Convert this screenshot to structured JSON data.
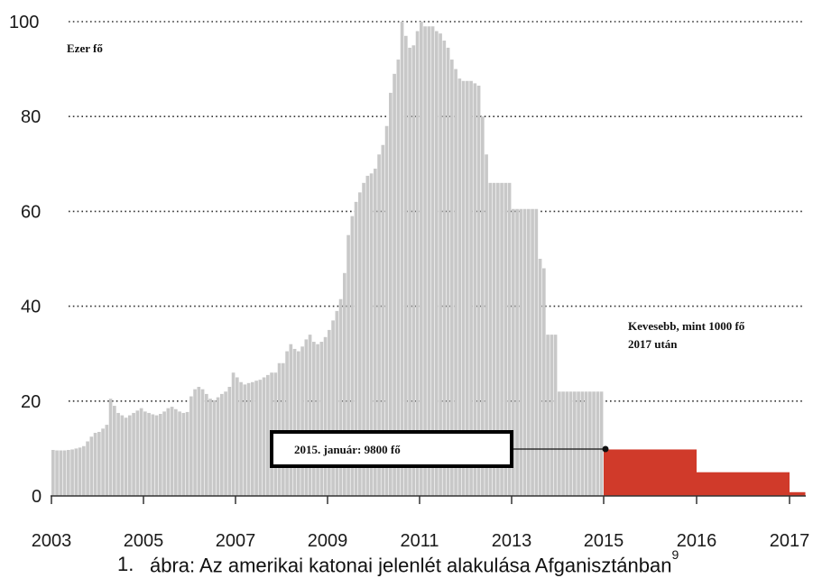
{
  "caption": {
    "number": "1.",
    "text": "ábra: Az amerikai katonai jelenlét alakulása Afganisztánban",
    "footnote": "9"
  },
  "chart_data": {
    "type": "bar",
    "ylabel": "Ezer fő",
    "ylim": [
      0,
      100
    ],
    "yticks": [
      0,
      20,
      40,
      60,
      80,
      100
    ],
    "xticks": [
      "2003",
      "2005",
      "2007",
      "2009",
      "2011",
      "2013",
      "2015",
      "2016",
      "2017"
    ],
    "grid": "horizontal dotted",
    "annotation_box": "2015. január: 9800 fő",
    "annotation_note_line1": "Kevesebb, mint 1000 fő",
    "annotation_note_line2": "2017 után",
    "colors": {
      "history": "#c8c8c8",
      "plan": "#d03a2a",
      "grid": "#333333"
    },
    "series": [
      {
        "kind": "historical",
        "period": "2003-2014 monthly",
        "values": [
          9.7,
          9.6,
          9.6,
          9.6,
          9.7,
          9.8,
          10.0,
          10.2,
          10.5,
          11.5,
          12.5,
          13.3,
          13.5,
          14.2,
          15.0,
          20.5,
          19.0,
          17.5,
          17.0,
          16.5,
          17.0,
          17.5,
          18.0,
          18.5,
          17.8,
          17.5,
          17.2,
          17.0,
          17.3,
          17.8,
          18.5,
          18.8,
          18.3,
          17.8,
          17.5,
          17.7,
          21.0,
          22.5,
          23.0,
          22.5,
          21.5,
          20.5,
          20.2,
          20.8,
          21.5,
          22.0,
          23.0,
          26.0,
          25.0,
          24.0,
          23.5,
          23.8,
          24.0,
          24.3,
          24.5,
          25.0,
          25.5,
          26.0,
          26.0,
          28.0,
          28.0,
          30.5,
          32.0,
          31.0,
          30.5,
          31.5,
          33.0,
          34.0,
          32.5,
          32.0,
          32.5,
          33.5,
          35.0,
          37.0,
          39.0,
          41.5,
          47.0,
          55.0,
          59.0,
          62.0,
          64.0,
          66.0,
          67.5,
          68.0,
          69.0,
          72.0,
          74.0,
          78.0,
          85.0,
          89.0,
          92.0,
          100.0,
          97.0,
          94.5,
          95.0,
          98.0,
          100.0,
          99.0,
          99.0,
          99.0,
          98.0,
          97.5,
          96.0,
          94.5,
          92.0,
          90.0,
          88.0,
          87.5,
          87.5,
          87.5,
          87.0,
          86.5,
          80.0,
          72.0,
          66.0,
          66.0,
          66.0,
          66.0,
          66.0,
          66.0,
          60.5,
          60.5,
          60.5,
          60.5,
          60.5,
          60.5,
          60.5,
          50.0,
          48.0,
          34.0,
          34.0,
          34.0,
          22.0,
          22.0,
          22.0,
          22.0,
          22.0,
          22.0,
          22.0,
          22.0,
          22.0,
          22.0,
          22.0,
          22.0
        ]
      },
      {
        "kind": "planned",
        "steps": [
          {
            "from": 2015,
            "to": 2016,
            "value": 9.8
          },
          {
            "from": 2016,
            "to": 2017,
            "value": 5.0
          },
          {
            "from": 2017,
            "to": 2017.17,
            "value": 0.8
          }
        ]
      }
    ]
  }
}
